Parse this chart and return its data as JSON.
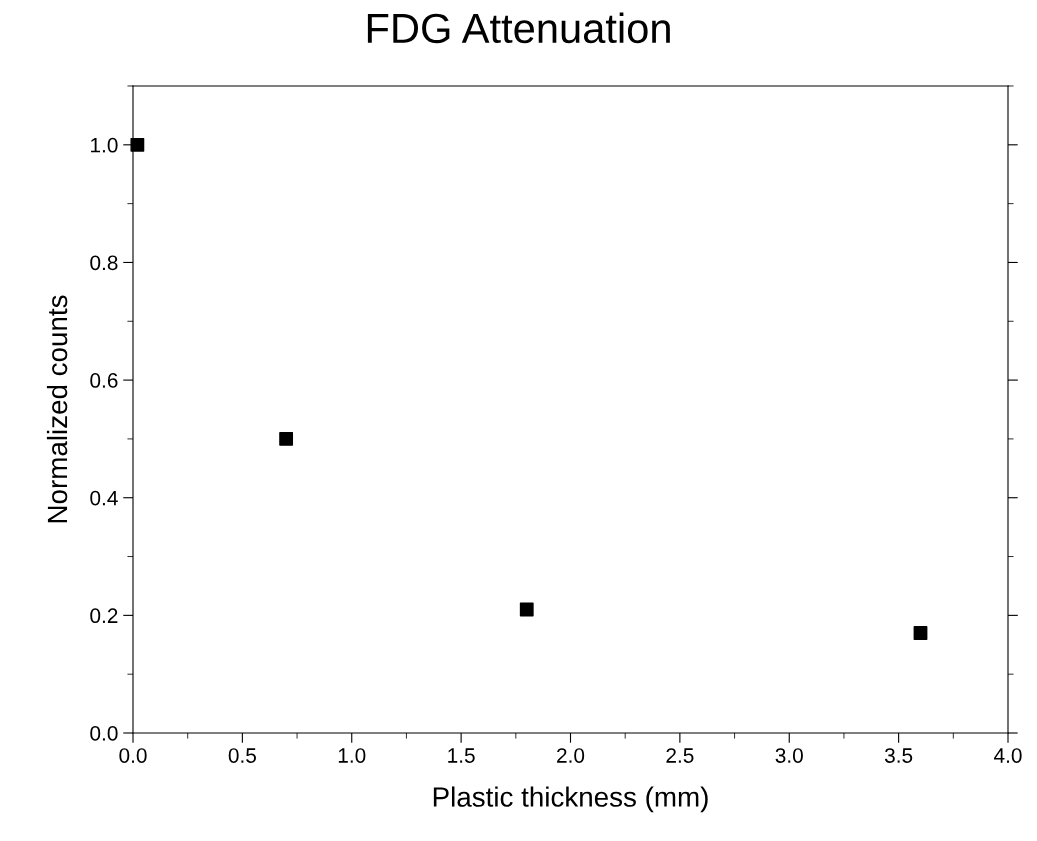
{
  "chart_data": {
    "type": "scatter",
    "title": "FDG Attenuation",
    "xlabel": "Plastic thickness (mm)",
    "ylabel": "Normalized counts",
    "x": [
      0.02,
      0.7,
      1.8,
      3.6
    ],
    "series": [
      {
        "color": "#000000",
        "values": [
          1.0,
          0.5,
          0.21,
          0.17
        ]
      }
    ],
    "marker": "square",
    "grid": false,
    "legend": false,
    "xlim": [
      0,
      4.0
    ],
    "xticks": [
      {
        "value": 0,
        "label": "0.0"
      },
      0.5,
      {
        "value": 1,
        "label": "1.0"
      },
      1.5,
      {
        "value": 2,
        "label": "2.0"
      },
      2.5,
      {
        "value": 3,
        "label": "3.0"
      },
      3.5,
      {
        "value": 4,
        "label": "4.0"
      }
    ],
    "ylim": [
      0,
      1.1
    ],
    "yticks": [
      {
        "value": 0,
        "label": "0.0"
      },
      0.2,
      0.4,
      0.6,
      0.8,
      {
        "value": 1,
        "label": "1.0"
      }
    ]
  }
}
